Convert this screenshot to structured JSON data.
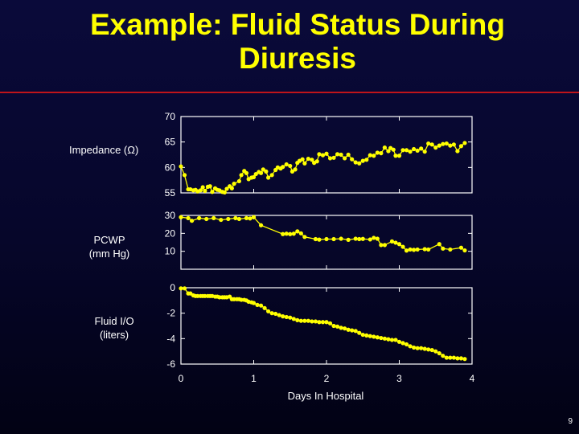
{
  "title_line1": "Example: Fluid Status During",
  "title_line2": "Diuresis",
  "page_number": "9",
  "colors": {
    "background": "#08083a",
    "title": "#ffff00",
    "series": "#ffff00",
    "divider": "#c0141a",
    "text": "#ffffff"
  },
  "chart_data": [
    {
      "type": "line",
      "panel": "impedance",
      "ylabel": "Impedance (Ω)",
      "ylim": [
        55,
        70
      ],
      "yticks": [
        "70",
        "65",
        "60",
        "55"
      ],
      "grid": false,
      "x": [
        0,
        0.05,
        0.1,
        0.13,
        0.17,
        0.2,
        0.23,
        0.27,
        0.3,
        0.33,
        0.37,
        0.4,
        0.43,
        0.47,
        0.5,
        0.53,
        0.57,
        0.6,
        0.63,
        0.67,
        0.7,
        0.73,
        0.8,
        0.83,
        0.87,
        0.9,
        0.93,
        0.97,
        1.0,
        1.03,
        1.07,
        1.1,
        1.13,
        1.17,
        1.2,
        1.25,
        1.3,
        1.33,
        1.37,
        1.4,
        1.45,
        1.5,
        1.53,
        1.57,
        1.6,
        1.63,
        1.67,
        1.7,
        1.75,
        1.8,
        1.83,
        1.87,
        1.9,
        1.95,
        2.0,
        2.05,
        2.1,
        2.15,
        2.2,
        2.25,
        2.3,
        2.35,
        2.4,
        2.45,
        2.5,
        2.55,
        2.6,
        2.65,
        2.7,
        2.75,
        2.8,
        2.85,
        2.88,
        2.92,
        2.95,
        3.0,
        3.05,
        3.1,
        3.15,
        3.2,
        3.25,
        3.3,
        3.35,
        3.4,
        3.45,
        3.5,
        3.55,
        3.6,
        3.65,
        3.7,
        3.75,
        3.8,
        3.85,
        3.9
      ],
      "series": [
        {
          "values": [
            60.2,
            58.5,
            55.7,
            55.7,
            55.5,
            55.6,
            55.3,
            55.5,
            56.1,
            55.4,
            56.2,
            56.3,
            55.2,
            55.9,
            55.6,
            55.5,
            55.2,
            55.1,
            55.8,
            56.3,
            55.9,
            56.8,
            57.3,
            58.5,
            59.3,
            58.9,
            57.7,
            58.0,
            58.1,
            58.7,
            59.1,
            58.9,
            59.6,
            59.2,
            58.0,
            58.5,
            59.5,
            60.0,
            59.8,
            60.1,
            60.6,
            60.3,
            59.2,
            59.6,
            60.9,
            61.3,
            61.6,
            60.8,
            61.7,
            61.5,
            60.9,
            61.2,
            62.6,
            62.4,
            62.7,
            61.8,
            61.9,
            62.6,
            62.5,
            61.8,
            62.5,
            61.6,
            61.0,
            60.8,
            61.3,
            61.5,
            62.4,
            62.3,
            62.9,
            62.8,
            63.9,
            63.2,
            63.8,
            63.5,
            62.3,
            62.3,
            63.4,
            63.4,
            63.1,
            63.6,
            63.3,
            63.7,
            63.1,
            64.7,
            64.5,
            63.9,
            64.3,
            64.6,
            64.7,
            64.3,
            64.5,
            63.2,
            64.2,
            64.8
          ]
        }
      ]
    },
    {
      "type": "line",
      "panel": "pcwp",
      "ylabel": "PCWP\n(mm Hg)",
      "ylim": [
        0,
        30
      ],
      "yticks": [
        "30",
        "20",
        "10"
      ],
      "grid": false,
      "x": [
        0,
        0.1,
        0.15,
        0.25,
        0.35,
        0.45,
        0.55,
        0.65,
        0.75,
        0.8,
        0.9,
        0.95,
        1.0,
        1.1,
        1.4,
        1.45,
        1.5,
        1.55,
        1.6,
        1.65,
        1.7,
        1.85,
        1.9,
        2.0,
        2.1,
        2.2,
        2.3,
        2.4,
        2.45,
        2.5,
        2.6,
        2.65,
        2.7,
        2.75,
        2.8,
        2.9,
        2.95,
        3.0,
        3.05,
        3.1,
        3.15,
        3.2,
        3.25,
        3.35,
        3.4,
        3.55,
        3.6,
        3.7,
        3.85,
        3.9
      ],
      "series": [
        {
          "values": [
            29.0,
            28.5,
            27.0,
            28.5,
            28.0,
            28.5,
            27.5,
            28.0,
            28.5,
            28.0,
            28.5,
            28.3,
            29.0,
            24.5,
            19.6,
            19.8,
            19.6,
            19.8,
            21.1,
            20.0,
            18.0,
            16.8,
            16.5,
            16.8,
            16.8,
            17.0,
            16.4,
            17.0,
            16.8,
            16.9,
            16.6,
            17.5,
            17.0,
            13.5,
            13.5,
            15.5,
            14.8,
            14.0,
            12.5,
            10.4,
            11.0,
            10.8,
            11.0,
            11.2,
            11.0,
            14.0,
            11.5,
            11.0,
            12.0,
            10.5
          ]
        }
      ]
    },
    {
      "type": "line",
      "panel": "fluid-io",
      "ylabel": "Fluid I/O\n(liters)",
      "ylim": [
        -6,
        0
      ],
      "yticks": [
        "0",
        "-2",
        "-4",
        "-6"
      ],
      "xlabel": "Days In Hospital",
      "xticks": [
        "0",
        "1",
        "2",
        "3",
        "4"
      ],
      "grid": false,
      "x": [
        0,
        0.05,
        0.1,
        0.13,
        0.17,
        0.2,
        0.23,
        0.27,
        0.3,
        0.33,
        0.37,
        0.4,
        0.43,
        0.47,
        0.5,
        0.53,
        0.57,
        0.6,
        0.63,
        0.67,
        0.7,
        0.73,
        0.77,
        0.8,
        0.83,
        0.87,
        0.9,
        0.93,
        0.97,
        1.0,
        1.05,
        1.1,
        1.15,
        1.2,
        1.25,
        1.3,
        1.35,
        1.4,
        1.45,
        1.5,
        1.55,
        1.6,
        1.65,
        1.7,
        1.75,
        1.8,
        1.85,
        1.9,
        1.95,
        2.0,
        2.05,
        2.1,
        2.15,
        2.2,
        2.25,
        2.3,
        2.35,
        2.4,
        2.45,
        2.5,
        2.55,
        2.6,
        2.65,
        2.7,
        2.75,
        2.8,
        2.85,
        2.9,
        2.95,
        3.0,
        3.05,
        3.1,
        3.15,
        3.2,
        3.25,
        3.3,
        3.35,
        3.4,
        3.45,
        3.5,
        3.55,
        3.6,
        3.65,
        3.7,
        3.75,
        3.8,
        3.85,
        3.9
      ],
      "series": [
        {
          "values": [
            -0.05,
            -0.05,
            -0.45,
            -0.45,
            -0.6,
            -0.65,
            -0.65,
            -0.65,
            -0.65,
            -0.65,
            -0.65,
            -0.65,
            -0.65,
            -0.7,
            -0.7,
            -0.75,
            -0.75,
            -0.75,
            -0.75,
            -0.7,
            -0.9,
            -0.9,
            -0.9,
            -0.9,
            -0.95,
            -0.95,
            -1.0,
            -1.1,
            -1.15,
            -1.2,
            -1.35,
            -1.4,
            -1.6,
            -1.85,
            -2.0,
            -2.05,
            -2.15,
            -2.25,
            -2.3,
            -2.35,
            -2.45,
            -2.55,
            -2.6,
            -2.6,
            -2.6,
            -2.65,
            -2.65,
            -2.7,
            -2.7,
            -2.7,
            -2.8,
            -3.0,
            -3.05,
            -3.15,
            -3.2,
            -3.3,
            -3.35,
            -3.4,
            -3.55,
            -3.7,
            -3.75,
            -3.8,
            -3.85,
            -3.9,
            -3.95,
            -4.0,
            -4.05,
            -4.1,
            -4.1,
            -4.25,
            -4.35,
            -4.45,
            -4.6,
            -4.7,
            -4.75,
            -4.75,
            -4.8,
            -4.85,
            -4.9,
            -5.0,
            -5.15,
            -5.35,
            -5.5,
            -5.5,
            -5.5,
            -5.55,
            -5.55,
            -5.6
          ]
        }
      ]
    }
  ]
}
